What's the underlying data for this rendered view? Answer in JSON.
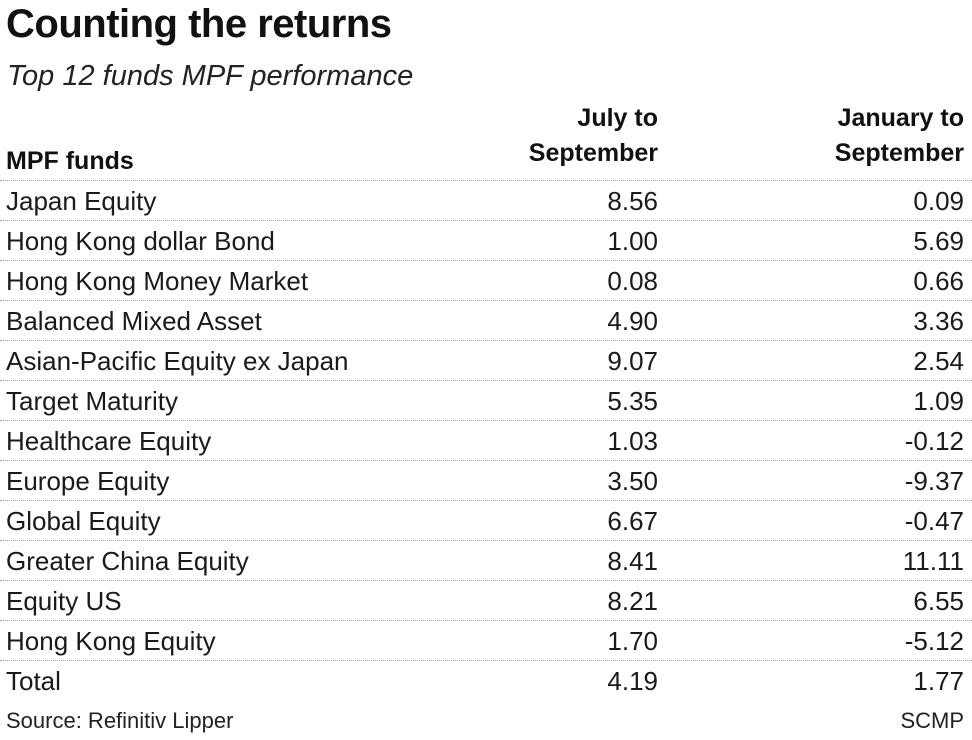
{
  "chart_data": {
    "type": "table",
    "title": "Counting the returns",
    "subtitle": "Top 12 funds MPF performance",
    "columns": [
      "MPF funds",
      "July to September",
      "January to September"
    ],
    "column_header_lines": {
      "funds": "MPF funds",
      "col1": [
        "July to",
        "September"
      ],
      "col2": [
        "January to",
        "September"
      ]
    },
    "rows": [
      {
        "name": "Japan Equity",
        "jul_sep": "8.56",
        "jan_sep": "0.09"
      },
      {
        "name": "Hong Kong dollar Bond",
        "jul_sep": "1.00",
        "jan_sep": "5.69"
      },
      {
        "name": "Hong Kong Money Market",
        "jul_sep": "0.08",
        "jan_sep": "0.66"
      },
      {
        "name": "Balanced Mixed Asset",
        "jul_sep": "4.90",
        "jan_sep": "3.36"
      },
      {
        "name": "Asian-Pacific Equity ex Japan",
        "jul_sep": "9.07",
        "jan_sep": "2.54"
      },
      {
        "name": "Target Maturity",
        "jul_sep": "5.35",
        "jan_sep": "1.09"
      },
      {
        "name": "Healthcare Equity",
        "jul_sep": "1.03",
        "jan_sep": "-0.12"
      },
      {
        "name": "Europe Equity",
        "jul_sep": "3.50",
        "jan_sep": "-9.37"
      },
      {
        "name": "Global Equity",
        "jul_sep": "6.67",
        "jan_sep": "-0.47"
      },
      {
        "name": "Greater China Equity",
        "jul_sep": "8.41",
        "jan_sep": "11.11"
      },
      {
        "name": "Equity US",
        "jul_sep": "8.21",
        "jan_sep": "6.55"
      },
      {
        "name": "Hong Kong Equity",
        "jul_sep": "1.70",
        "jan_sep": "-5.12"
      },
      {
        "name": "Total",
        "jul_sep": "4.19",
        "jan_sep": "1.77"
      }
    ],
    "source": "Source: Refinitiv Lipper",
    "credit": "SCMP"
  }
}
